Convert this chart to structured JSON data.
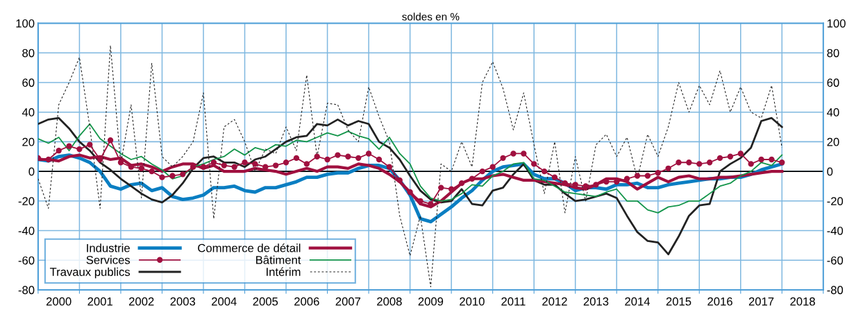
{
  "chart_data": {
    "type": "line",
    "title": "soldes en %",
    "x": [
      2000,
      2000.25,
      2000.5,
      2000.75,
      2001,
      2001.25,
      2001.5,
      2001.75,
      2002,
      2002.25,
      2002.5,
      2002.75,
      2003,
      2003.25,
      2003.5,
      2003.75,
      2004,
      2004.25,
      2004.5,
      2004.75,
      2005,
      2005.25,
      2005.5,
      2005.75,
      2006,
      2006.25,
      2006.5,
      2006.75,
      2007,
      2007.25,
      2007.5,
      2007.75,
      2008,
      2008.25,
      2008.5,
      2008.75,
      2009,
      2009.25,
      2009.5,
      2009.75,
      2010,
      2010.25,
      2010.5,
      2010.75,
      2011,
      2011.25,
      2011.5,
      2011.75,
      2012,
      2012.25,
      2012.5,
      2012.75,
      2013,
      2013.25,
      2013.5,
      2013.75,
      2014,
      2014.25,
      2014.5,
      2014.75,
      2015,
      2015.25,
      2015.5,
      2015.75,
      2016,
      2016.25,
      2016.5,
      2016.75,
      2017,
      2017.25,
      2017.5,
      2017.75,
      2018
    ],
    "series": [
      {
        "name": "Industrie",
        "color": "#0a7ec2",
        "marker": "none",
        "line_style": "solid",
        "values": [
          8,
          7,
          10,
          11,
          9,
          6,
          0,
          -10,
          -12,
          -9,
          -8,
          -13,
          -11,
          -17,
          -19,
          -18,
          -16,
          -11,
          -11,
          -10,
          -13,
          -14,
          -11,
          -11,
          -9,
          -7,
          -4,
          -4,
          -2,
          -1,
          -1,
          2,
          4,
          4,
          2,
          -6,
          -16,
          -32,
          -34,
          -29,
          -24,
          -18,
          -13,
          -6,
          0,
          3,
          4,
          5,
          -2,
          -5,
          -5,
          -8,
          -13,
          -11,
          -11,
          -12,
          -9,
          -9,
          -8,
          -11,
          -11,
          -9,
          -8,
          -7,
          -6,
          -5,
          -5,
          -4,
          -4,
          -2,
          1,
          3,
          5
        ]
      },
      {
        "name": "Services",
        "color": "#a0103f",
        "marker": "circle",
        "line_style": "solid",
        "values": [
          9,
          8,
          14,
          17,
          15,
          18,
          8,
          21,
          6,
          3,
          2,
          0,
          -4,
          -3,
          -2,
          3,
          3,
          6,
          4,
          3,
          6,
          5,
          3,
          4,
          6,
          9,
          5,
          10,
          8,
          11,
          10,
          9,
          12,
          8,
          3,
          -6,
          -14,
          -20,
          -22,
          -11,
          -12,
          -8,
          -5,
          0,
          3,
          9,
          12,
          12,
          5,
          0,
          -4,
          -8,
          -9,
          -10,
          -9,
          -7,
          -7,
          -5,
          -3,
          -3,
          -1,
          2,
          6,
          6,
          5,
          6,
          9,
          10,
          12,
          5,
          8,
          8,
          6
        ]
      },
      {
        "name": "Travaux publics",
        "color": "#222222",
        "marker": "none",
        "line_style": "solid",
        "values": [
          32,
          35,
          36,
          29,
          20,
          14,
          6,
          1,
          -5,
          -10,
          -15,
          -19,
          -21,
          -16,
          -8,
          2,
          9,
          10,
          6,
          6,
          3,
          8,
          10,
          15,
          20,
          23,
          24,
          32,
          31,
          35,
          31,
          34,
          32,
          20,
          16,
          8,
          -3,
          -13,
          -19,
          -21,
          -20,
          -12,
          -22,
          -23,
          -13,
          -11,
          -2,
          5,
          -6,
          -9,
          -9,
          -15,
          -20,
          -19,
          -17,
          -15,
          -18,
          -30,
          -41,
          -47,
          -48,
          -56,
          -44,
          -30,
          -23,
          -22,
          0,
          5,
          9,
          16,
          34,
          36,
          30
        ]
      },
      {
        "name": "Commerce de détail",
        "color": "#a0103f",
        "marker": "none",
        "line_style": "solid",
        "values": [
          8,
          8,
          7,
          10,
          11,
          9,
          10,
          8,
          9,
          4,
          5,
          3,
          0,
          3,
          5,
          5,
          2,
          4,
          0,
          0,
          0,
          2,
          1,
          0,
          -2,
          0,
          2,
          0,
          3,
          3,
          2,
          5,
          4,
          2,
          -2,
          -7,
          -14,
          -22,
          -24,
          -20,
          -14,
          -8,
          -5,
          -5,
          -3,
          -2,
          -4,
          -6,
          -6,
          -7,
          -8,
          -9,
          -11,
          -12,
          -9,
          -5,
          -5,
          -7,
          -12,
          -8,
          -4,
          -7,
          -4,
          -3,
          -5,
          -5,
          -4,
          -4,
          -3,
          -2,
          -1,
          0,
          0
        ]
      },
      {
        "name": "Bâtiment",
        "color": "#13954a",
        "marker": "none",
        "line_style": "solid",
        "values": [
          22,
          19,
          23,
          14,
          24,
          32,
          22,
          17,
          12,
          8,
          10,
          5,
          1,
          -5,
          -3,
          3,
          5,
          8,
          10,
          15,
          11,
          16,
          14,
          18,
          17,
          21,
          20,
          23,
          26,
          24,
          27,
          24,
          22,
          15,
          23,
          12,
          5,
          -10,
          -18,
          -20,
          -19,
          -15,
          -9,
          -10,
          -3,
          0,
          5,
          6,
          -5,
          -6,
          -10,
          -14,
          -15,
          -16,
          -17,
          -14,
          -12,
          -20,
          -20,
          -26,
          -28,
          -24,
          -23,
          -20,
          -20,
          -15,
          -10,
          -8,
          -3,
          0,
          6,
          4,
          11
        ]
      },
      {
        "name": "Intérim",
        "color": "#222222",
        "marker": "none",
        "line_style": "dashed",
        "values": [
          -5,
          -25,
          45,
          60,
          77,
          30,
          -25,
          85,
          5,
          45,
          -18,
          73,
          10,
          3,
          10,
          20,
          53,
          -32,
          30,
          35,
          20,
          0,
          15,
          12,
          30,
          14,
          65,
          10,
          46,
          45,
          28,
          20,
          57,
          37,
          20,
          -30,
          -57,
          -30,
          -78,
          5,
          0,
          20,
          3,
          60,
          74,
          56,
          28,
          53,
          18,
          -15,
          20,
          -28,
          10,
          -20,
          18,
          25,
          10,
          23,
          -5,
          25,
          10,
          30,
          60,
          40,
          58,
          45,
          68,
          40,
          57,
          40,
          36,
          58,
          16
        ]
      }
    ],
    "xlim": [
      2000,
      2019
    ],
    "xticks": [
      {
        "value": 2000,
        "label": null
      },
      {
        "value": 2000.5,
        "label": "2000"
      },
      {
        "value": 2001,
        "label": null
      },
      {
        "value": 2001.5,
        "label": "2001"
      },
      {
        "value": 2002,
        "label": null
      },
      {
        "value": 2002.5,
        "label": "2002"
      },
      {
        "value": 2003,
        "label": null
      },
      {
        "value": 2003.5,
        "label": "2003"
      },
      {
        "value": 2004,
        "label": null
      },
      {
        "value": 2004.5,
        "label": "2004"
      },
      {
        "value": 2005,
        "label": null
      },
      {
        "value": 2005.5,
        "label": "2005"
      },
      {
        "value": 2006,
        "label": null
      },
      {
        "value": 2006.5,
        "label": "2006"
      },
      {
        "value": 2007,
        "label": null
      },
      {
        "value": 2007.5,
        "label": "2007"
      },
      {
        "value": 2008,
        "label": null
      },
      {
        "value": 2008.5,
        "label": "2008"
      },
      {
        "value": 2009,
        "label": null
      },
      {
        "value": 2009.5,
        "label": "2009"
      },
      {
        "value": 2010,
        "label": null
      },
      {
        "value": 2010.5,
        "label": "2010"
      },
      {
        "value": 2011,
        "label": null
      },
      {
        "value": 2011.5,
        "label": "2011"
      },
      {
        "value": 2012,
        "label": null
      },
      {
        "value": 2012.5,
        "label": "2012"
      },
      {
        "value": 2013,
        "label": null
      },
      {
        "value": 2013.5,
        "label": "2013"
      },
      {
        "value": 2014,
        "label": null
      },
      {
        "value": 2014.5,
        "label": "2014"
      },
      {
        "value": 2015,
        "label": null
      },
      {
        "value": 2015.5,
        "label": "2015"
      },
      {
        "value": 2016,
        "label": null
      },
      {
        "value": 2016.5,
        "label": "2016"
      },
      {
        "value": 2017,
        "label": null
      },
      {
        "value": 2017.5,
        "label": "2017"
      },
      {
        "value": 2018,
        "label": null
      },
      {
        "value": 2018.5,
        "label": "2018"
      },
      {
        "value": 2019,
        "label": null
      }
    ],
    "ylim": [
      -80,
      100
    ],
    "yticks": [
      -80,
      -60,
      -40,
      -20,
      0,
      20,
      40,
      60,
      80,
      100
    ],
    "y2lim": [
      -80,
      100
    ],
    "y2ticks": [
      -80,
      -60,
      -40,
      -20,
      0,
      20,
      40,
      60,
      80,
      100
    ],
    "ref_lines": [
      {
        "axis": "y",
        "value": 0,
        "color": "#000000"
      }
    ],
    "grid": true,
    "legend": "bottom left"
  }
}
